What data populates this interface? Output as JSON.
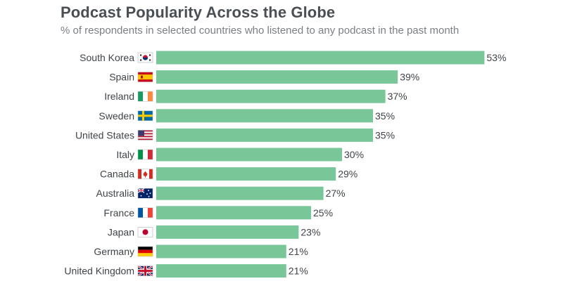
{
  "title": "Podcast Popularity Across the Globe",
  "subtitle": "% of respondents in selected countries who listened to any podcast in the past month",
  "colors": {
    "bar": "#79c799",
    "text": "#3f4448",
    "title": "#4a4f54"
  },
  "chart_data": {
    "type": "bar",
    "orientation": "horizontal",
    "title": "Podcast Popularity Across the Globe",
    "subtitle": "% of respondents in selected countries who listened to any podcast in the past month",
    "categories": [
      "South Korea",
      "Spain",
      "Ireland",
      "Sweden",
      "United States",
      "Italy",
      "Canada",
      "Australia",
      "France",
      "Japan",
      "Germany",
      "United Kingdom"
    ],
    "values": [
      53,
      39,
      37,
      35,
      35,
      30,
      29,
      27,
      25,
      23,
      21,
      21
    ],
    "value_suffix": "%",
    "flags": [
      "south-korea-flag",
      "spain-flag",
      "ireland-flag",
      "sweden-flag",
      "us-flag",
      "italy-flag",
      "canada-flag",
      "australia-flag",
      "france-flag",
      "japan-flag",
      "germany-flag",
      "uk-flag"
    ],
    "xlim": [
      0,
      100
    ],
    "grid": false,
    "legend": "none"
  }
}
